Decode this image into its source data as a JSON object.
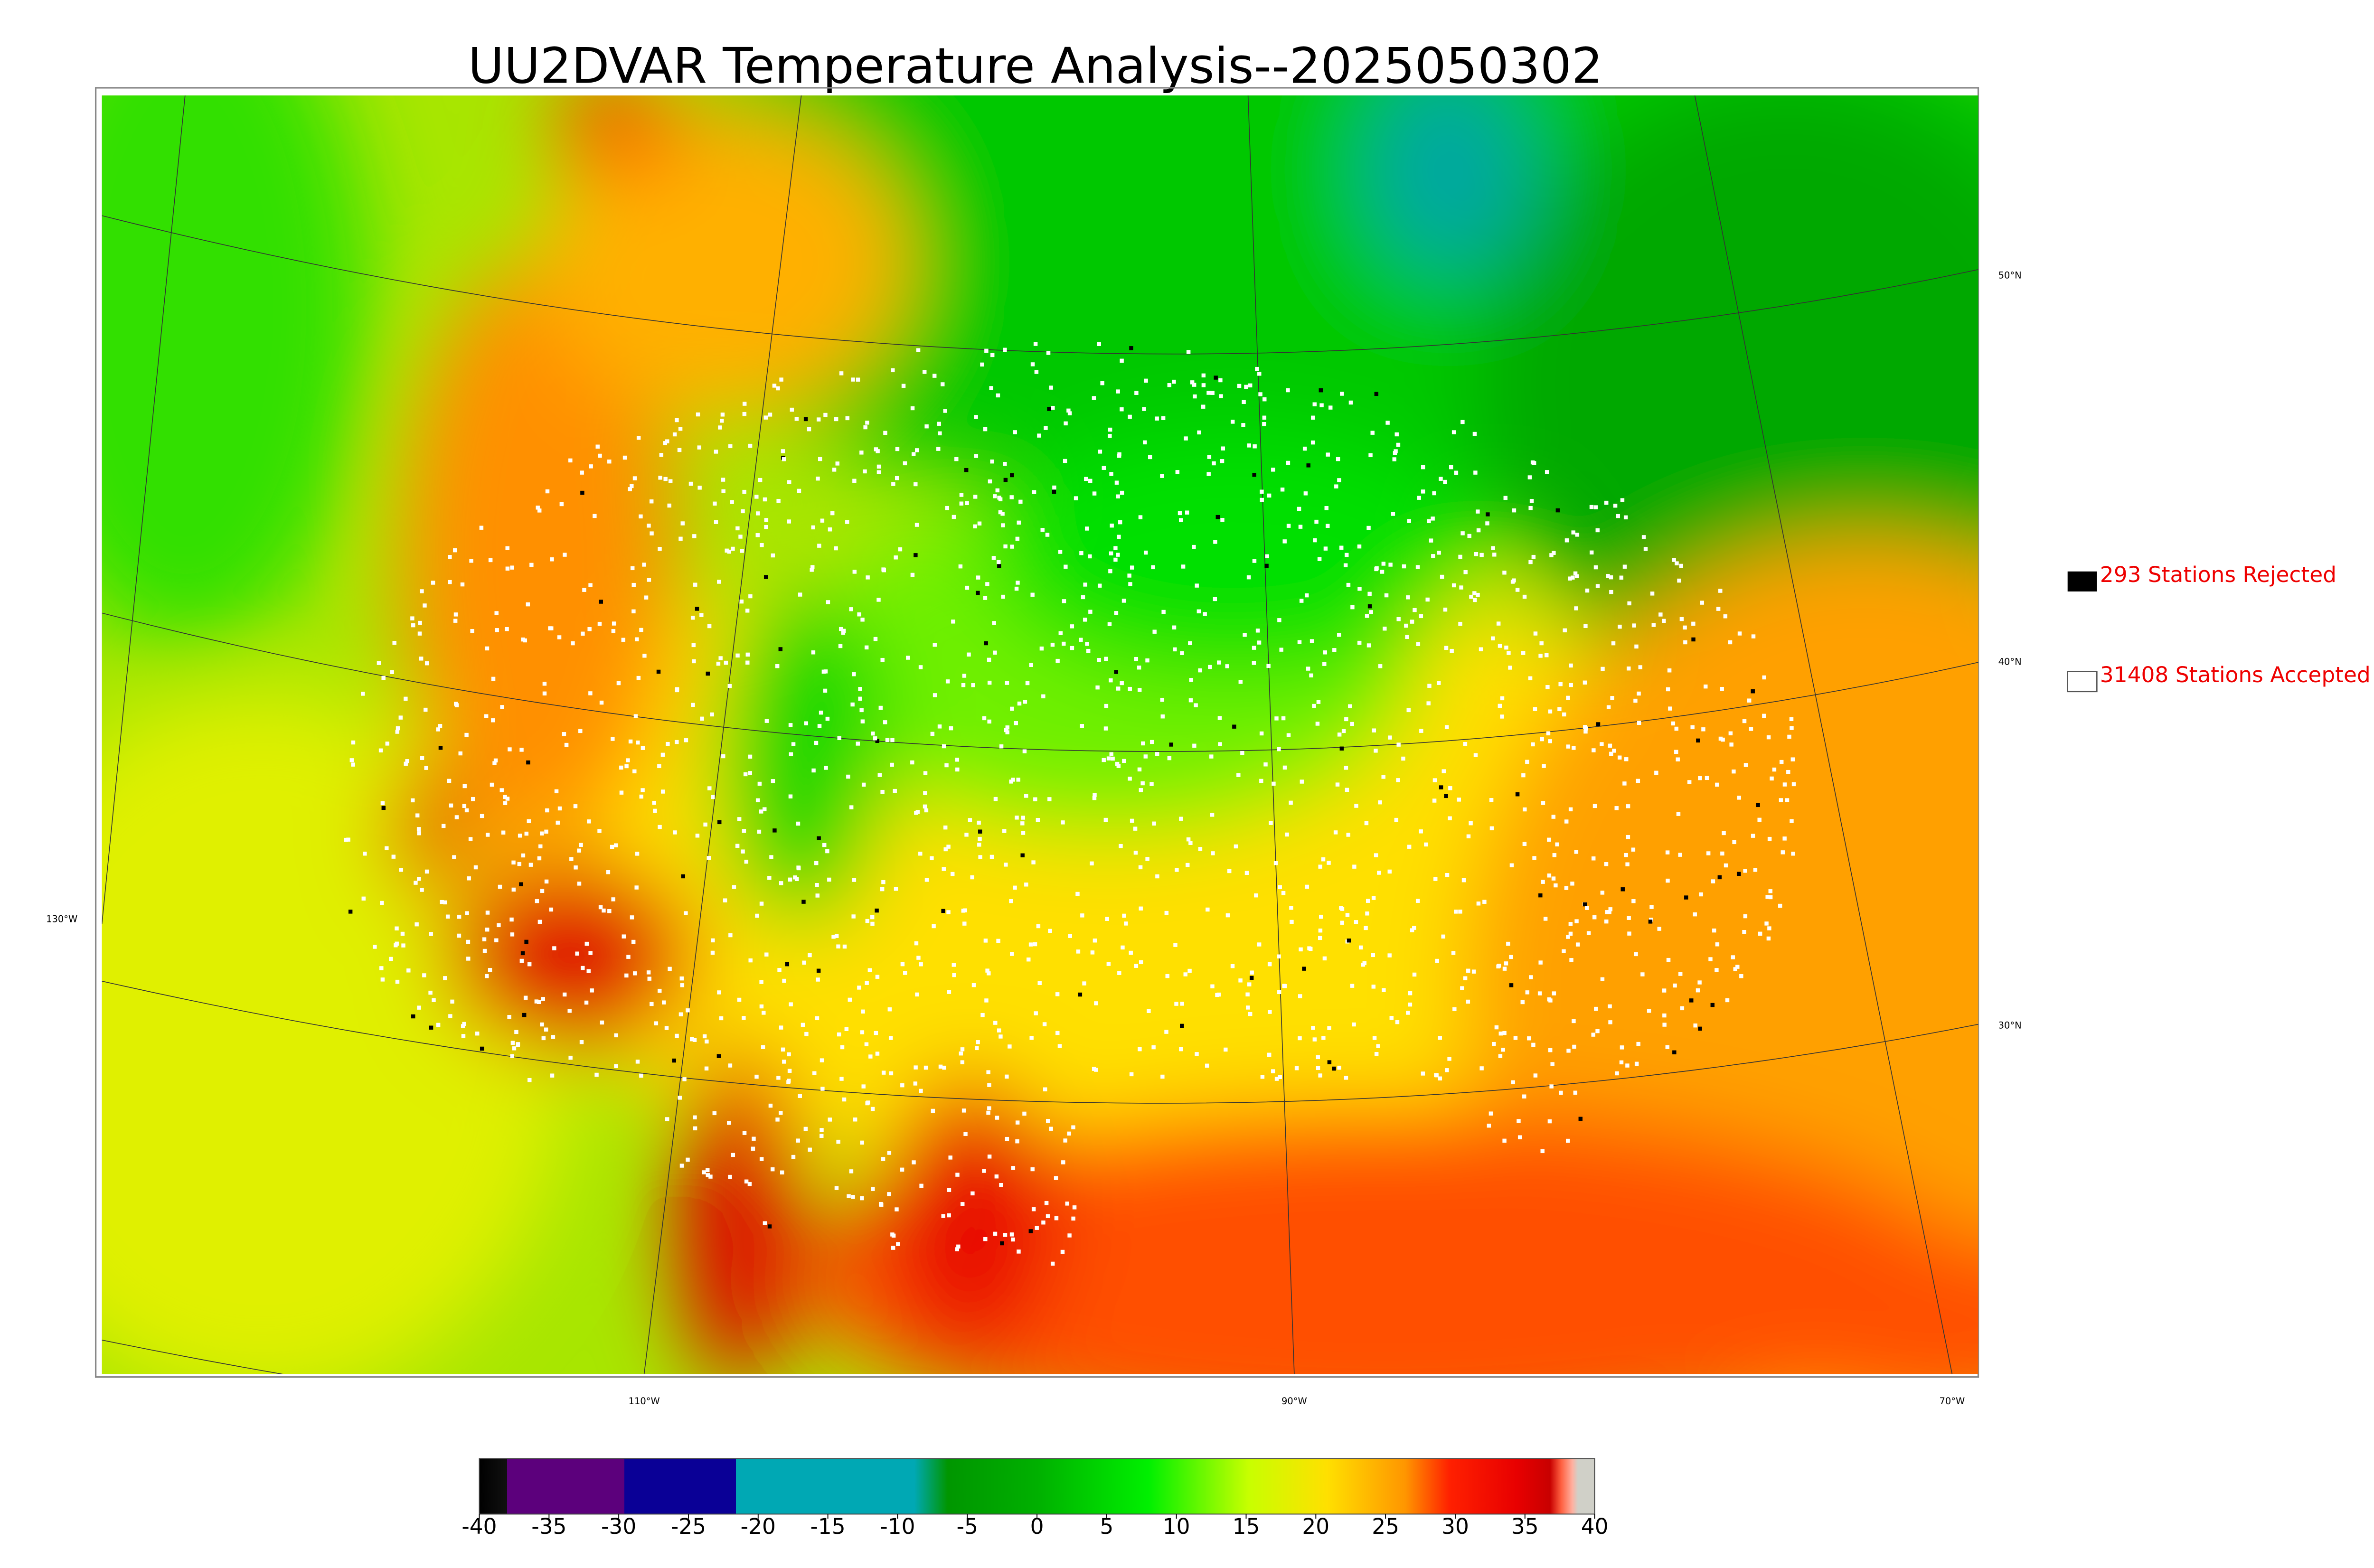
{
  "title": "UU2DVAR Temperature Analysis--2025050302",
  "legend": [
    {
      "label": "293 Stations Rejected",
      "color": "#000000"
    },
    {
      "label": "31408 Stations Accepted",
      "color": "#ffffff"
    }
  ],
  "latitude_labels": [
    "50°N",
    "40°N",
    "30°N"
  ],
  "longitude_labels": [
    "130°W",
    "110°W",
    "90°W",
    "70°W"
  ],
  "colorbar": {
    "lim": [
      -40,
      40
    ],
    "ticks": [
      -40,
      -35,
      -30,
      -25,
      -20,
      -15,
      -10,
      -5,
      0,
      5,
      10,
      15,
      20,
      25,
      30,
      35,
      40
    ]
  }
}
